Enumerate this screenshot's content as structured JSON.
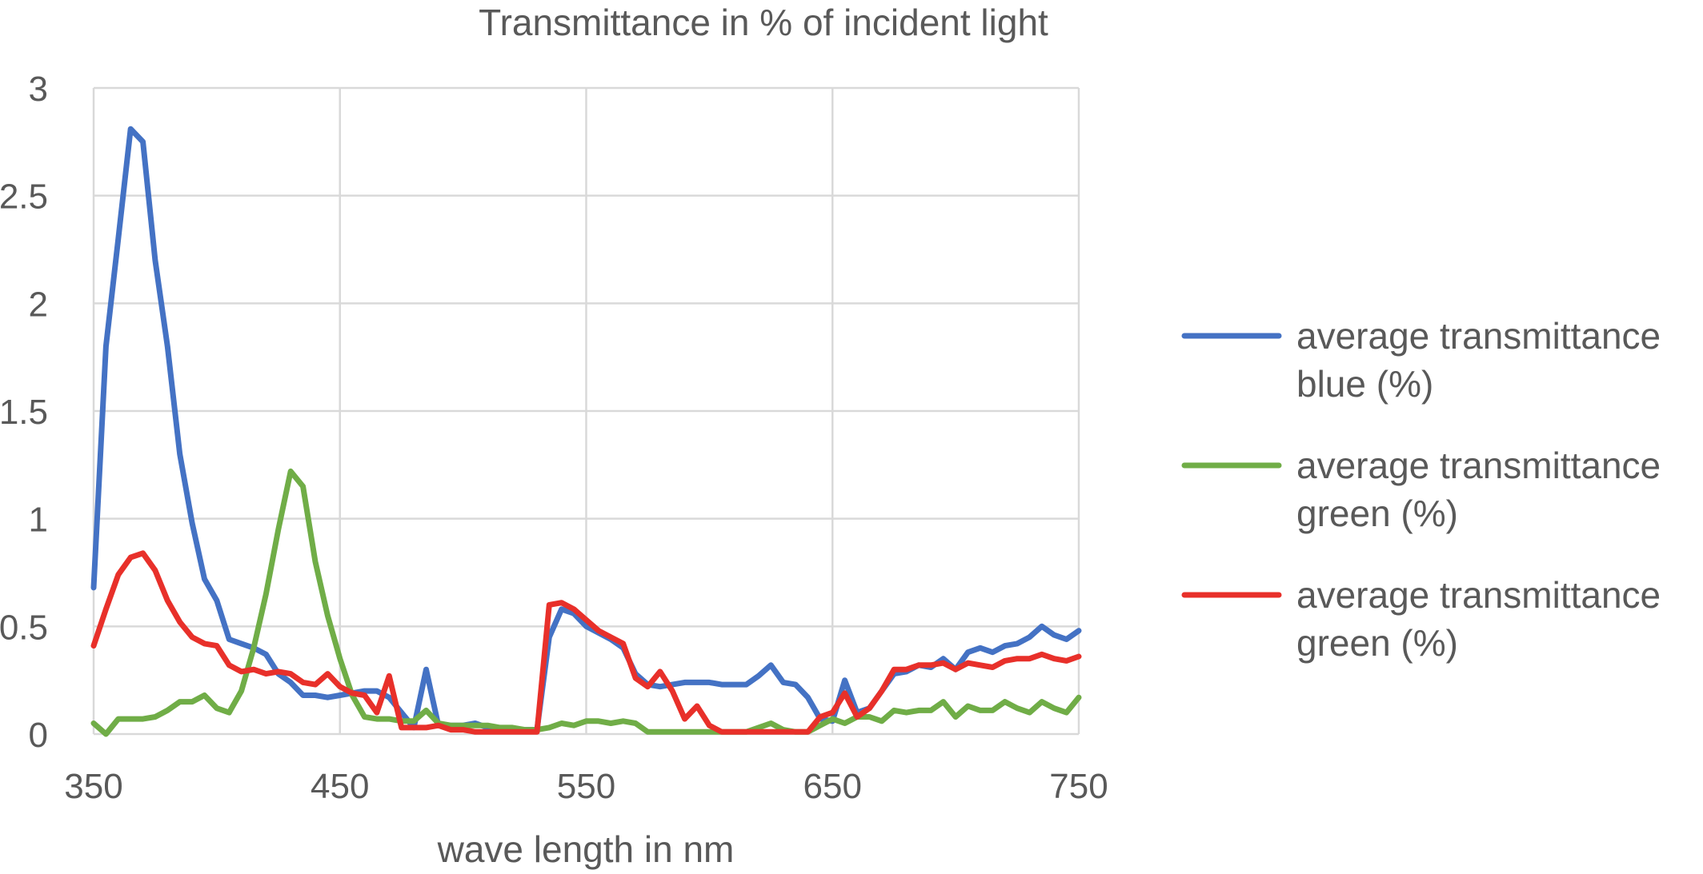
{
  "chart_data": {
    "type": "line",
    "title": "Transmittance in % of incident light",
    "xlabel": "wave length in nm",
    "ylabel": "",
    "xlim": [
      350,
      750
    ],
    "ylim": [
      0,
      3
    ],
    "x_ticks": [
      350,
      450,
      550,
      650,
      750
    ],
    "y_ticks": [
      0,
      0.5,
      1,
      1.5,
      2,
      2.5,
      3
    ],
    "y_tick_labels": [
      "0",
      "0.5",
      "1",
      "1.5",
      "2",
      "2.5",
      "3"
    ],
    "grid": true,
    "legend_position": "right",
    "x": [
      350,
      355,
      360,
      365,
      370,
      375,
      380,
      385,
      390,
      395,
      400,
      405,
      410,
      415,
      420,
      425,
      430,
      435,
      440,
      445,
      450,
      455,
      460,
      465,
      470,
      475,
      480,
      485,
      490,
      495,
      500,
      505,
      510,
      515,
      520,
      525,
      530,
      535,
      540,
      545,
      550,
      555,
      560,
      565,
      570,
      575,
      580,
      585,
      590,
      595,
      600,
      605,
      610,
      615,
      620,
      625,
      630,
      635,
      640,
      645,
      650,
      655,
      660,
      665,
      670,
      675,
      680,
      685,
      690,
      695,
      700,
      705,
      710,
      715,
      720,
      725,
      730,
      735,
      740,
      745,
      750
    ],
    "series": [
      {
        "name": "average transmittance blue (%)",
        "color": "#4472C4",
        "values": [
          0.68,
          1.8,
          2.3,
          2.81,
          2.75,
          2.2,
          1.8,
          1.3,
          0.98,
          0.72,
          0.62,
          0.44,
          0.42,
          0.4,
          0.37,
          0.28,
          0.24,
          0.18,
          0.18,
          0.17,
          0.18,
          0.19,
          0.2,
          0.2,
          0.17,
          0.1,
          0.03,
          0.3,
          0.04,
          0.04,
          0.04,
          0.05,
          0.03,
          0.02,
          0.02,
          0.02,
          0.02,
          0.45,
          0.58,
          0.56,
          0.5,
          0.47,
          0.44,
          0.4,
          0.28,
          0.23,
          0.22,
          0.23,
          0.24,
          0.24,
          0.24,
          0.23,
          0.23,
          0.23,
          0.27,
          0.32,
          0.24,
          0.23,
          0.17,
          0.07,
          0.06,
          0.25,
          0.1,
          0.12,
          0.2,
          0.28,
          0.29,
          0.32,
          0.31,
          0.35,
          0.3,
          0.38,
          0.4,
          0.38,
          0.41,
          0.42,
          0.45,
          0.5,
          0.46,
          0.44,
          0.48
        ]
      },
      {
        "name": "average transmittance green (%)",
        "color": "#70AD47",
        "values": [
          0.05,
          0.0,
          0.07,
          0.07,
          0.07,
          0.08,
          0.11,
          0.15,
          0.15,
          0.18,
          0.12,
          0.1,
          0.2,
          0.4,
          0.65,
          0.95,
          1.22,
          1.15,
          0.8,
          0.55,
          0.35,
          0.18,
          0.08,
          0.07,
          0.07,
          0.06,
          0.06,
          0.11,
          0.05,
          0.04,
          0.04,
          0.04,
          0.04,
          0.03,
          0.03,
          0.02,
          0.02,
          0.03,
          0.05,
          0.04,
          0.06,
          0.06,
          0.05,
          0.06,
          0.05,
          0.01,
          0.01,
          0.01,
          0.01,
          0.01,
          0.01,
          0.01,
          0.01,
          0.01,
          0.03,
          0.05,
          0.02,
          0.01,
          0.01,
          0.04,
          0.07,
          0.05,
          0.08,
          0.08,
          0.06,
          0.11,
          0.1,
          0.11,
          0.11,
          0.15,
          0.08,
          0.13,
          0.11,
          0.11,
          0.15,
          0.12,
          0.1,
          0.15,
          0.12,
          0.1,
          0.17
        ]
      },
      {
        "name": "average transmittance green (%)",
        "color": "#E8302A",
        "values": [
          0.41,
          0.58,
          0.74,
          0.82,
          0.84,
          0.76,
          0.62,
          0.52,
          0.45,
          0.42,
          0.41,
          0.32,
          0.29,
          0.3,
          0.28,
          0.29,
          0.28,
          0.24,
          0.23,
          0.28,
          0.22,
          0.19,
          0.18,
          0.1,
          0.27,
          0.03,
          0.03,
          0.03,
          0.04,
          0.02,
          0.02,
          0.01,
          0.01,
          0.01,
          0.01,
          0.01,
          0.01,
          0.6,
          0.61,
          0.58,
          0.53,
          0.48,
          0.45,
          0.42,
          0.26,
          0.22,
          0.29,
          0.2,
          0.07,
          0.13,
          0.04,
          0.01,
          0.01,
          0.01,
          0.01,
          0.01,
          0.01,
          0.01,
          0.01,
          0.08,
          0.1,
          0.19,
          0.08,
          0.12,
          0.2,
          0.3,
          0.3,
          0.32,
          0.32,
          0.33,
          0.3,
          0.33,
          0.32,
          0.31,
          0.34,
          0.35,
          0.35,
          0.37,
          0.35,
          0.34,
          0.36
        ]
      }
    ]
  }
}
